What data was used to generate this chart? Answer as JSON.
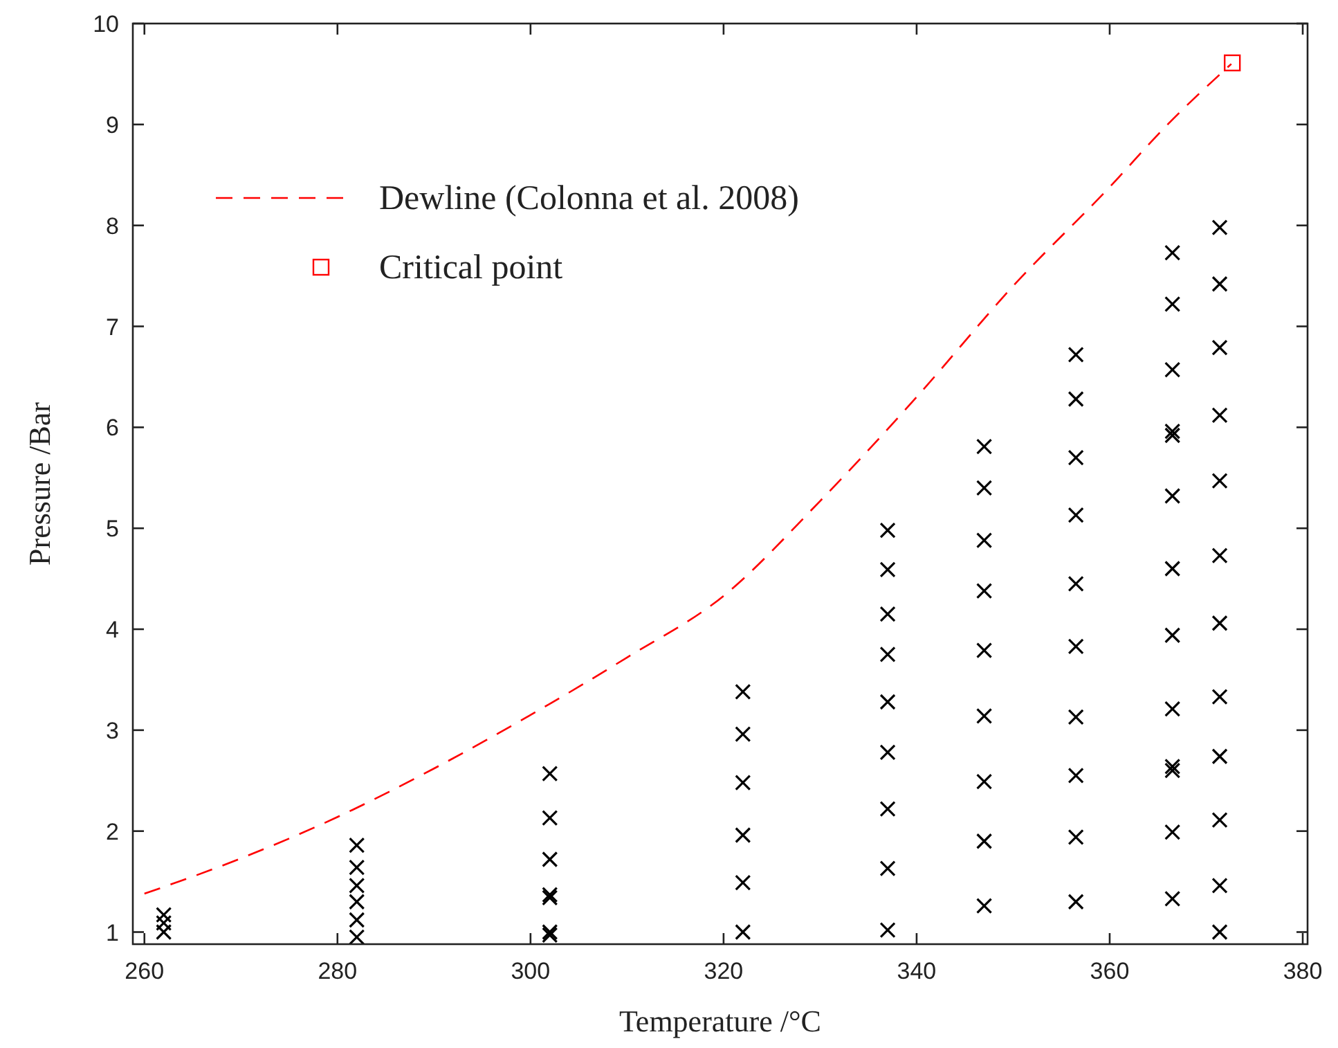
{
  "chart_data": {
    "type": "scatter",
    "xlabel": "Temperature /°C",
    "ylabel": "Pressure /Bar",
    "xlim": [
      258.8,
      380.5
    ],
    "ylim": [
      0.88,
      10
    ],
    "xticks": [
      260,
      280,
      300,
      320,
      340,
      360,
      380
    ],
    "yticks": [
      1,
      2,
      3,
      4,
      5,
      6,
      7,
      8,
      9,
      10
    ],
    "grid": false,
    "legend": "top left",
    "series": [
      {
        "name": "Dewline (Colonna et al. 2008)",
        "type": "line",
        "color": "#ff0000",
        "line_style": "dashed",
        "marker": "none",
        "x": [
          260,
          270,
          280,
          290,
          300,
          310,
          320,
          330,
          340,
          350,
          360,
          366,
          372.6
        ],
        "values": [
          1.38,
          1.73,
          2.14,
          2.62,
          3.15,
          3.72,
          4.33,
          5.27,
          6.3,
          7.4,
          8.38,
          9.0,
          9.6
        ]
      },
      {
        "name": "Critical point",
        "type": "scatter",
        "color": "#ff0000",
        "marker": "square",
        "x": [
          372.7
        ],
        "values": [
          9.61
        ]
      },
      {
        "color": "#000000",
        "marker": "cross",
        "x": [
          262,
          262,
          262,
          282,
          282,
          282,
          282,
          282,
          282,
          302,
          302,
          302,
          302,
          302,
          302,
          302,
          322,
          322,
          322,
          322,
          322,
          322,
          337,
          337,
          337,
          337,
          337,
          337,
          337,
          337,
          337,
          347,
          347,
          347,
          347,
          347,
          347,
          347,
          347,
          347,
          356.5,
          356.5,
          356.5,
          356.5,
          356.5,
          356.5,
          356.5,
          356.5,
          356.5,
          356.5,
          366.5,
          366.5,
          366.5,
          366.5,
          366.5,
          366.5,
          366.5,
          366.5,
          366.5,
          366.5,
          366.5,
          366.5,
          366.5,
          371.4,
          371.4,
          371.4,
          371.4,
          371.4,
          371.4,
          371.4,
          371.4,
          371.4,
          371.4,
          371.4,
          371.4
        ],
        "values": [
          1.17,
          1.09,
          1.0,
          1.86,
          1.64,
          1.46,
          1.3,
          1.12,
          0.95,
          2.57,
          2.13,
          1.72,
          1.37,
          1.34,
          1.0,
          0.97,
          3.38,
          2.96,
          2.48,
          1.96,
          1.49,
          1.0,
          4.98,
          4.59,
          4.15,
          3.75,
          3.28,
          2.78,
          2.22,
          1.63,
          1.02,
          5.81,
          5.4,
          4.88,
          4.38,
          3.79,
          3.14,
          2.49,
          1.9,
          1.26,
          6.72,
          6.28,
          5.7,
          5.13,
          4.45,
          3.83,
          3.13,
          2.55,
          1.94,
          1.3,
          7.73,
          7.22,
          6.57,
          5.96,
          5.92,
          5.32,
          4.6,
          3.94,
          3.21,
          2.64,
          2.6,
          1.99,
          1.33,
          7.98,
          7.42,
          6.79,
          6.12,
          5.47,
          4.73,
          4.06,
          3.33,
          2.74,
          2.11,
          1.46,
          1.0
        ]
      }
    ]
  }
}
